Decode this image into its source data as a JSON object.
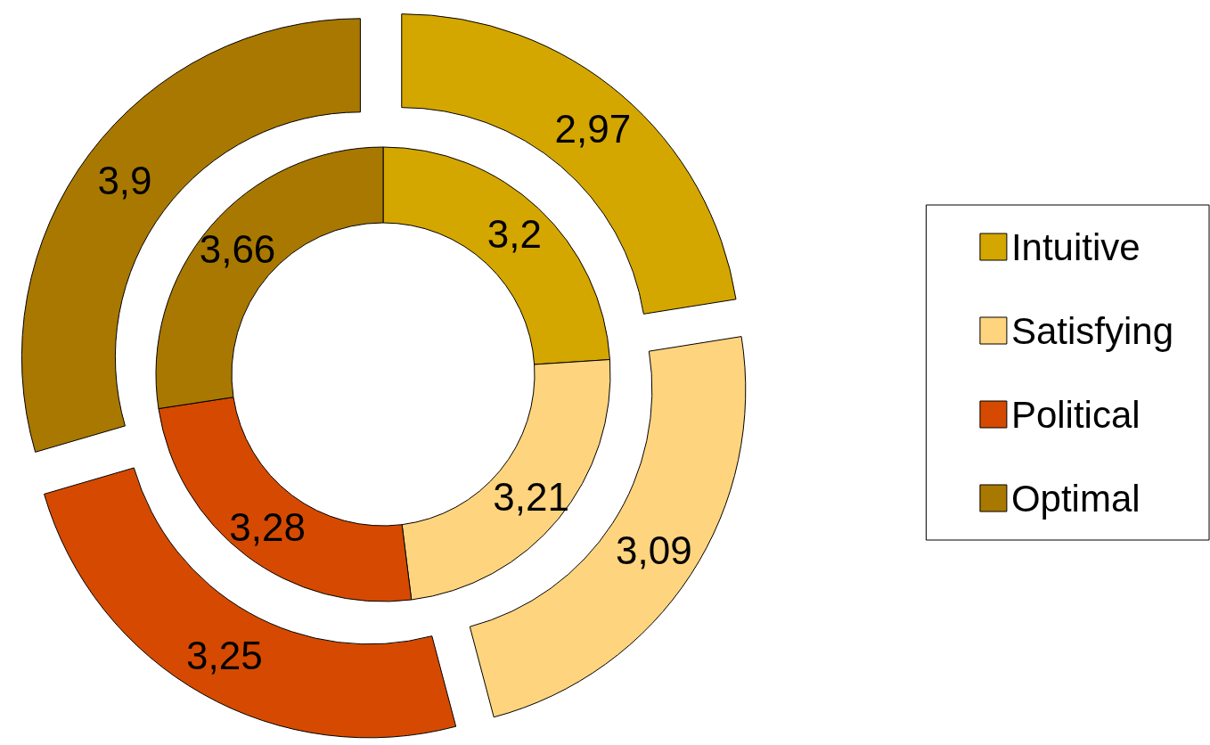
{
  "chart_data": {
    "type": "donut",
    "categories": [
      "Intuitive",
      "Satisfying",
      "Political",
      "Optimal"
    ],
    "series": [
      {
        "values": [
          3.2,
          3.21,
          3.28,
          3.66
        ],
        "colors": [
          "#d4a600",
          "#fed47e",
          "#d54a00",
          "#a87800"
        ],
        "value_labels": [
          "3,2",
          "3,21",
          "3,28",
          "3,66"
        ]
      },
      {
        "values": [
          2.97,
          3.09,
          3.25,
          3.9
        ],
        "colors": [
          "#d4a600",
          "#fed47e",
          "#d54a00",
          "#a87800"
        ],
        "value_labels": [
          "2,97",
          "3,09",
          "3,25",
          "3,9"
        ]
      }
    ],
    "legend": "right"
  }
}
